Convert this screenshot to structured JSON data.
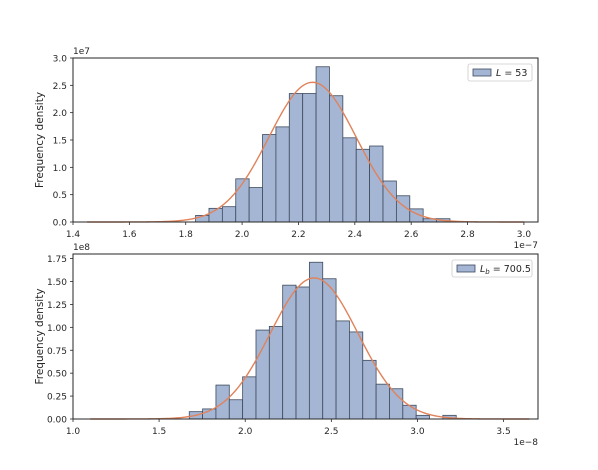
{
  "chart_data": [
    {
      "type": "bar",
      "subtype": "histogram-with-density-curve",
      "ylabel": "Frequency density",
      "x_offset_label": "1e−7",
      "y_offset_label": "1e7",
      "x_ticks": [
        "1.4",
        "1.6",
        "1.8",
        "2.0",
        "2.2",
        "2.4",
        "2.6",
        "2.8",
        "3.0"
      ],
      "x_tick_values": [
        1.4,
        1.6,
        1.8,
        2.0,
        2.2,
        2.4,
        2.6,
        2.8,
        3.0
      ],
      "y_ticks": [
        "0.0",
        "0.5",
        "1.0",
        "1.5",
        "2.0",
        "2.5",
        "3.0"
      ],
      "y_tick_values": [
        0.0,
        0.5,
        1.0,
        1.5,
        2.0,
        2.5,
        3.0
      ],
      "xlim": [
        1.4,
        3.05
      ],
      "ylim": [
        0,
        3.0
      ],
      "legend": {
        "label": "L = 53",
        "position": "top-right"
      },
      "bin_width": 0.0475,
      "bins": [
        {
          "x0": 1.835,
          "value": 0.12
        },
        {
          "x0": 1.8825,
          "value": 0.25
        },
        {
          "x0": 1.93,
          "value": 0.28
        },
        {
          "x0": 1.9775,
          "value": 0.79
        },
        {
          "x0": 2.025,
          "value": 0.63
        },
        {
          "x0": 2.0725,
          "value": 1.6
        },
        {
          "x0": 2.12,
          "value": 1.74
        },
        {
          "x0": 2.1675,
          "value": 2.35
        },
        {
          "x0": 2.215,
          "value": 2.35
        },
        {
          "x0": 2.2625,
          "value": 2.84
        },
        {
          "x0": 2.31,
          "value": 2.31
        },
        {
          "x0": 2.3575,
          "value": 1.54
        },
        {
          "x0": 2.405,
          "value": 1.33
        },
        {
          "x0": 2.4525,
          "value": 1.39
        },
        {
          "x0": 2.5,
          "value": 0.75
        },
        {
          "x0": 2.5475,
          "value": 0.48
        },
        {
          "x0": 2.595,
          "value": 0.24
        },
        {
          "x0": 2.6425,
          "value": 0.06
        },
        {
          "x0": 2.69,
          "value": 0.06
        }
      ],
      "curve": {
        "mean": 2.25,
        "sd": 0.155,
        "x_range": [
          1.45,
          3.0
        ]
      },
      "colors": {
        "bar_fill": "#a5b6d5",
        "bar_edge": "#3d4a5c",
        "curve": "#e0825a"
      }
    },
    {
      "type": "bar",
      "subtype": "histogram-with-density-curve",
      "ylabel": "Frequency density",
      "x_offset_label": "1e−8",
      "y_offset_label": "1e8",
      "x_ticks": [
        "1.0",
        "1.5",
        "2.0",
        "2.5",
        "3.0",
        "3.5"
      ],
      "x_tick_values": [
        1.0,
        1.5,
        2.0,
        2.5,
        3.0,
        3.5
      ],
      "y_ticks": [
        "0.00",
        "0.25",
        "0.50",
        "0.75",
        "1.00",
        "1.25",
        "1.50",
        "1.75"
      ],
      "y_tick_values": [
        0.0,
        0.25,
        0.5,
        0.75,
        1.0,
        1.25,
        1.5,
        1.75
      ],
      "xlim": [
        1.0,
        3.7
      ],
      "ylim": [
        0,
        1.8
      ],
      "legend": {
        "label": "Lb = 700.5",
        "position": "top-right"
      },
      "bin_width": 0.0775,
      "bins": [
        {
          "x0": 1.675,
          "value": 0.08
        },
        {
          "x0": 1.7525,
          "value": 0.11
        },
        {
          "x0": 1.83,
          "value": 0.37
        },
        {
          "x0": 1.9075,
          "value": 0.21
        },
        {
          "x0": 1.985,
          "value": 0.46
        },
        {
          "x0": 2.0625,
          "value": 0.97
        },
        {
          "x0": 2.14,
          "value": 1.01
        },
        {
          "x0": 2.2175,
          "value": 1.46
        },
        {
          "x0": 2.295,
          "value": 1.44
        },
        {
          "x0": 2.3725,
          "value": 1.71
        },
        {
          "x0": 2.45,
          "value": 1.53
        },
        {
          "x0": 2.5275,
          "value": 1.07
        },
        {
          "x0": 2.605,
          "value": 0.95
        },
        {
          "x0": 2.6825,
          "value": 0.64
        },
        {
          "x0": 2.76,
          "value": 0.38
        },
        {
          "x0": 2.8375,
          "value": 0.33
        },
        {
          "x0": 2.915,
          "value": 0.15
        },
        {
          "x0": 2.9925,
          "value": 0.04
        },
        {
          "x0": 3.1475,
          "value": 0.04
        }
      ],
      "curve": {
        "mean": 2.4,
        "sd": 0.255,
        "x_range": [
          1.1,
          3.65
        ]
      },
      "colors": {
        "bar_fill": "#a5b6d5",
        "bar_edge": "#3d4a5c",
        "curve": "#e0825a"
      }
    }
  ]
}
